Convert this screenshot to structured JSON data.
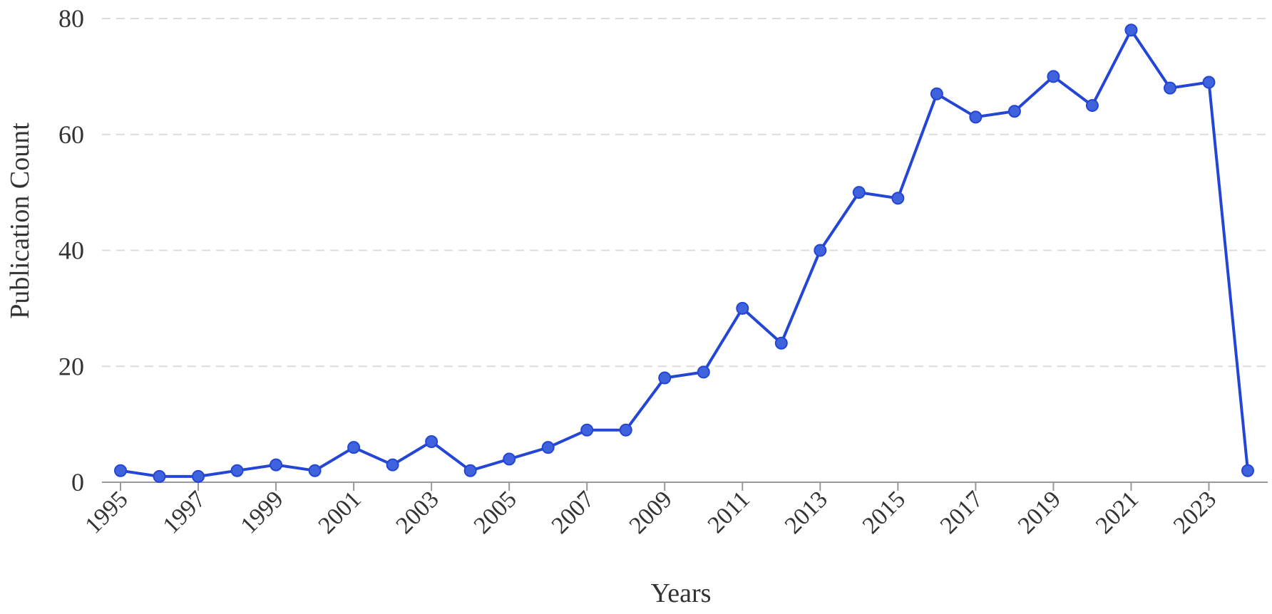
{
  "chart_data": {
    "type": "line",
    "title": "",
    "xlabel": "Years",
    "ylabel": "Publication Count",
    "x": [
      1995,
      1996,
      1997,
      1998,
      1999,
      2000,
      2001,
      2002,
      2003,
      2004,
      2005,
      2006,
      2007,
      2008,
      2009,
      2010,
      2011,
      2012,
      2013,
      2014,
      2015,
      2016,
      2017,
      2018,
      2019,
      2020,
      2021,
      2022,
      2023,
      2024
    ],
    "series": [
      {
        "values": [
          2,
          1,
          1,
          2,
          3,
          2,
          6,
          3,
          7,
          2,
          4,
          6,
          9,
          9,
          18,
          19,
          30,
          24,
          40,
          50,
          49,
          67,
          63,
          64,
          70,
          65,
          78,
          68,
          69,
          2
        ]
      }
    ],
    "xticks": [
      "1995",
      "1997",
      "1999",
      "2001",
      "2003",
      "2005",
      "2007",
      "2009",
      "2011",
      "2013",
      "2015",
      "2017",
      "2019",
      "2021",
      "2023"
    ],
    "yticks": [
      "0",
      "20",
      "40",
      "60",
      "80"
    ],
    "ylim": [
      0,
      80
    ],
    "xlim": [
      1995,
      2024
    ],
    "grid": "horizontal dashed",
    "legend": "none",
    "colors": {
      "line": "#2446d6",
      "marker": "#3f63dc",
      "grid": "#dcdcdc",
      "axis": "#999999",
      "text": "#333333"
    }
  }
}
